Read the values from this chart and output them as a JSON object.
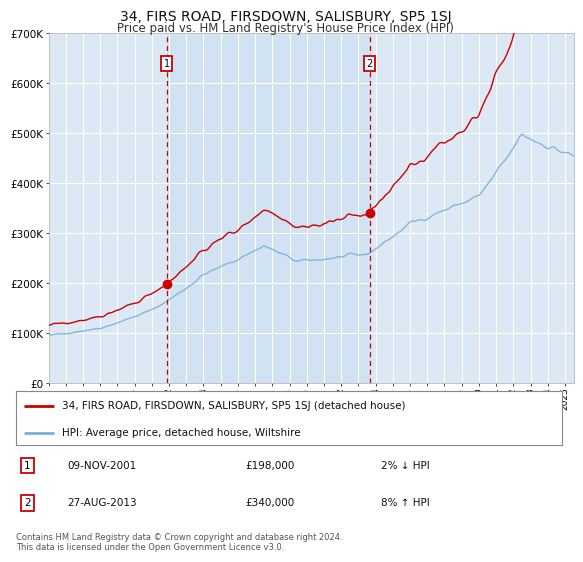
{
  "title": "34, FIRS ROAD, FIRSDOWN, SALISBURY, SP5 1SJ",
  "subtitle": "Price paid vs. HM Land Registry's House Price Index (HPI)",
  "title_fontsize": 10,
  "subtitle_fontsize": 8.5,
  "background_color": "#ffffff",
  "plot_bg_color": "#dce9f5",
  "grid_color": "#ffffff",
  "hpi_line_color": "#7ab0d8",
  "price_line_color": "#cc0000",
  "sale1_x": 2001.86,
  "sale1_y": 198000,
  "sale2_x": 2013.65,
  "sale2_y": 340000,
  "vline_color": "#cc0000",
  "marker_color": "#cc0000",
  "legend_entry1": "34, FIRS ROAD, FIRSDOWN, SALISBURY, SP5 1SJ (detached house)",
  "legend_entry2": "HPI: Average price, detached house, Wiltshire",
  "table_row1_num": "1",
  "table_row1_date": "09-NOV-2001",
  "table_row1_price": "£198,000",
  "table_row1_hpi": "2% ↓ HPI",
  "table_row2_num": "2",
  "table_row2_date": "27-AUG-2013",
  "table_row2_price": "£340,000",
  "table_row2_hpi": "8% ↑ HPI",
  "footer": "Contains HM Land Registry data © Crown copyright and database right 2024.\nThis data is licensed under the Open Government Licence v3.0.",
  "ylim": [
    0,
    700000
  ],
  "xlim_start": 1995.0,
  "xlim_end": 2025.5,
  "yticks": [
    0,
    100000,
    200000,
    300000,
    400000,
    500000,
    600000,
    700000
  ],
  "ytick_labels": [
    "£0",
    "£100K",
    "£200K",
    "£300K",
    "£400K",
    "£500K",
    "£600K",
    "£700K"
  ],
  "xticks": [
    1995,
    1996,
    1997,
    1998,
    1999,
    2000,
    2001,
    2002,
    2003,
    2004,
    2005,
    2006,
    2007,
    2008,
    2009,
    2010,
    2011,
    2012,
    2013,
    2014,
    2015,
    2016,
    2017,
    2018,
    2019,
    2020,
    2021,
    2022,
    2023,
    2024,
    2025
  ]
}
